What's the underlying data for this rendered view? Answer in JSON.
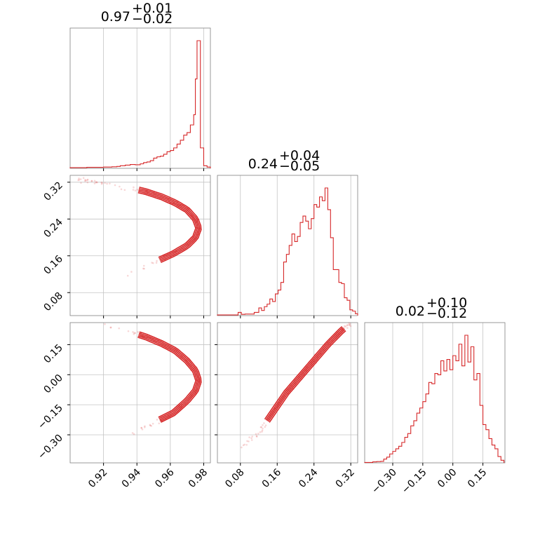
{
  "chart_data": {
    "type": "corner",
    "color": "#d62728",
    "params": [
      {
        "title_median": "0.97",
        "title_plus": "+0.01",
        "title_minus": "−0.02",
        "range": [
          0.9,
          0.984
        ],
        "ticks": [
          0.92,
          0.94,
          0.96,
          0.98
        ],
        "tick_labels": [
          "0.92",
          "0.94",
          "0.96",
          "0.98"
        ],
        "hist_bins": [
          {
            "x": 0.9,
            "h": 0.005
          },
          {
            "x": 0.905,
            "h": 0.005
          },
          {
            "x": 0.91,
            "h": 0.008
          },
          {
            "x": 0.915,
            "h": 0.008
          },
          {
            "x": 0.92,
            "h": 0.01
          },
          {
            "x": 0.925,
            "h": 0.012
          },
          {
            "x": 0.928,
            "h": 0.015
          },
          {
            "x": 0.93,
            "h": 0.02
          },
          {
            "x": 0.933,
            "h": 0.025
          },
          {
            "x": 0.936,
            "h": 0.03
          },
          {
            "x": 0.939,
            "h": 0.028
          },
          {
            "x": 0.942,
            "h": 0.035
          },
          {
            "x": 0.944,
            "h": 0.045
          },
          {
            "x": 0.946,
            "h": 0.05
          },
          {
            "x": 0.948,
            "h": 0.06
          },
          {
            "x": 0.95,
            "h": 0.08
          },
          {
            "x": 0.952,
            "h": 0.09
          },
          {
            "x": 0.954,
            "h": 0.095
          },
          {
            "x": 0.956,
            "h": 0.11
          },
          {
            "x": 0.958,
            "h": 0.13
          },
          {
            "x": 0.96,
            "h": 0.14
          },
          {
            "x": 0.962,
            "h": 0.16
          },
          {
            "x": 0.964,
            "h": 0.19
          },
          {
            "x": 0.966,
            "h": 0.22
          },
          {
            "x": 0.968,
            "h": 0.26
          },
          {
            "x": 0.97,
            "h": 0.28
          },
          {
            "x": 0.972,
            "h": 0.34
          },
          {
            "x": 0.974,
            "h": 0.42
          },
          {
            "x": 0.975,
            "h": 0.7
          },
          {
            "x": 0.976,
            "h": 1.0
          },
          {
            "x": 0.978,
            "h": 0.16
          },
          {
            "x": 0.98,
            "h": 0.02
          },
          {
            "x": 0.982,
            "h": 0.01
          }
        ]
      },
      {
        "title_median": "0.24",
        "title_plus": "+0.04",
        "title_minus": "−0.05",
        "range": [
          0.03,
          0.335
        ],
        "ticks": [
          0.08,
          0.16,
          0.24,
          0.32
        ],
        "tick_labels": [
          "0.08",
          "0.16",
          "0.24",
          "0.32"
        ],
        "hist_bins": [
          {
            "x": 0.03,
            "h": 0.005
          },
          {
            "x": 0.05,
            "h": 0.005
          },
          {
            "x": 0.075,
            "h": 0.025
          },
          {
            "x": 0.082,
            "h": 0.01
          },
          {
            "x": 0.09,
            "h": 0.012
          },
          {
            "x": 0.11,
            "h": 0.025
          },
          {
            "x": 0.12,
            "h": 0.06
          },
          {
            "x": 0.126,
            "h": 0.04
          },
          {
            "x": 0.132,
            "h": 0.07
          },
          {
            "x": 0.138,
            "h": 0.09
          },
          {
            "x": 0.144,
            "h": 0.13
          },
          {
            "x": 0.15,
            "h": 0.11
          },
          {
            "x": 0.156,
            "h": 0.17
          },
          {
            "x": 0.162,
            "h": 0.2
          },
          {
            "x": 0.168,
            "h": 0.26
          },
          {
            "x": 0.174,
            "h": 0.42
          },
          {
            "x": 0.18,
            "h": 0.48
          },
          {
            "x": 0.186,
            "h": 0.55
          },
          {
            "x": 0.192,
            "h": 0.64
          },
          {
            "x": 0.198,
            "h": 0.58
          },
          {
            "x": 0.204,
            "h": 0.62
          },
          {
            "x": 0.21,
            "h": 0.73
          },
          {
            "x": 0.216,
            "h": 0.78
          },
          {
            "x": 0.222,
            "h": 0.74
          },
          {
            "x": 0.228,
            "h": 0.68
          },
          {
            "x": 0.234,
            "h": 0.76
          },
          {
            "x": 0.24,
            "h": 0.87
          },
          {
            "x": 0.246,
            "h": 0.85
          },
          {
            "x": 0.252,
            "h": 0.93
          },
          {
            "x": 0.258,
            "h": 0.9
          },
          {
            "x": 0.264,
            "h": 1.0
          },
          {
            "x": 0.27,
            "h": 0.83
          },
          {
            "x": 0.276,
            "h": 0.61
          },
          {
            "x": 0.282,
            "h": 0.36
          },
          {
            "x": 0.288,
            "h": 0.36
          },
          {
            "x": 0.294,
            "h": 0.26
          },
          {
            "x": 0.3,
            "h": 0.25
          },
          {
            "x": 0.306,
            "h": 0.14
          },
          {
            "x": 0.312,
            "h": 0.12
          },
          {
            "x": 0.318,
            "h": 0.045
          },
          {
            "x": 0.324,
            "h": 0.035
          },
          {
            "x": 0.33,
            "h": 0.015
          }
        ]
      },
      {
        "title_median": "0.02",
        "title_plus": "+0.10",
        "title_minus": "−0.12",
        "range": [
          -0.44,
          0.26
        ],
        "ticks": [
          -0.3,
          -0.15,
          0.0,
          0.15
        ],
        "tick_labels": [
          "−0.30",
          "−0.15",
          "0.00",
          "0.15"
        ],
        "hist_bins": [
          {
            "x": -0.44,
            "h": 0.003
          },
          {
            "x": -0.4,
            "h": 0.008
          },
          {
            "x": -0.38,
            "h": 0.01
          },
          {
            "x": -0.36,
            "h": 0.012
          },
          {
            "x": -0.345,
            "h": 0.03
          },
          {
            "x": -0.33,
            "h": 0.045
          },
          {
            "x": -0.315,
            "h": 0.07
          },
          {
            "x": -0.3,
            "h": 0.09
          },
          {
            "x": -0.285,
            "h": 0.11
          },
          {
            "x": -0.27,
            "h": 0.13
          },
          {
            "x": -0.255,
            "h": 0.16
          },
          {
            "x": -0.24,
            "h": 0.2
          },
          {
            "x": -0.225,
            "h": 0.23
          },
          {
            "x": -0.21,
            "h": 0.29
          },
          {
            "x": -0.195,
            "h": 0.33
          },
          {
            "x": -0.18,
            "h": 0.39
          },
          {
            "x": -0.165,
            "h": 0.43
          },
          {
            "x": -0.15,
            "h": 0.48
          },
          {
            "x": -0.135,
            "h": 0.54
          },
          {
            "x": -0.12,
            "h": 0.63
          },
          {
            "x": -0.105,
            "h": 0.62
          },
          {
            "x": -0.09,
            "h": 0.7
          },
          {
            "x": -0.075,
            "h": 0.69
          },
          {
            "x": -0.06,
            "h": 0.8
          },
          {
            "x": -0.045,
            "h": 0.72
          },
          {
            "x": -0.03,
            "h": 0.81
          },
          {
            "x": -0.015,
            "h": 0.73
          },
          {
            "x": 0.0,
            "h": 0.84
          },
          {
            "x": 0.015,
            "h": 0.8
          },
          {
            "x": 0.03,
            "h": 0.93
          },
          {
            "x": 0.045,
            "h": 0.76
          },
          {
            "x": 0.06,
            "h": 1.0
          },
          {
            "x": 0.075,
            "h": 0.79
          },
          {
            "x": 0.09,
            "h": 0.91
          },
          {
            "x": 0.105,
            "h": 0.65
          },
          {
            "x": 0.12,
            "h": 0.7
          },
          {
            "x": 0.135,
            "h": 0.45
          },
          {
            "x": 0.15,
            "h": 0.3
          },
          {
            "x": 0.165,
            "h": 0.26
          },
          {
            "x": 0.18,
            "h": 0.19
          },
          {
            "x": 0.195,
            "h": 0.14
          },
          {
            "x": 0.21,
            "h": 0.11
          },
          {
            "x": 0.225,
            "h": 0.05
          },
          {
            "x": 0.24,
            "h": 0.02
          }
        ]
      }
    ],
    "pair_ridges": {
      "p1_vs_p0": [
        {
          "x": 0.905,
          "y": 0.325
        },
        {
          "x": 0.92,
          "y": 0.318
        },
        {
          "x": 0.935,
          "y": 0.308
        },
        {
          "x": 0.945,
          "y": 0.3
        },
        {
          "x": 0.955,
          "y": 0.288
        },
        {
          "x": 0.963,
          "y": 0.275
        },
        {
          "x": 0.97,
          "y": 0.26
        },
        {
          "x": 0.975,
          "y": 0.24
        },
        {
          "x": 0.977,
          "y": 0.22
        },
        {
          "x": 0.975,
          "y": 0.2
        },
        {
          "x": 0.97,
          "y": 0.182
        },
        {
          "x": 0.962,
          "y": 0.165
        },
        {
          "x": 0.95,
          "y": 0.145
        },
        {
          "x": 0.935,
          "y": 0.12
        }
      ],
      "p2_vs_p0": [
        {
          "x": 0.905,
          "y": 0.28
        },
        {
          "x": 0.92,
          "y": 0.25
        },
        {
          "x": 0.935,
          "y": 0.215
        },
        {
          "x": 0.945,
          "y": 0.19
        },
        {
          "x": 0.955,
          "y": 0.155
        },
        {
          "x": 0.963,
          "y": 0.12
        },
        {
          "x": 0.97,
          "y": 0.07
        },
        {
          "x": 0.975,
          "y": 0.02
        },
        {
          "x": 0.977,
          "y": -0.03
        },
        {
          "x": 0.975,
          "y": -0.08
        },
        {
          "x": 0.97,
          "y": -0.13
        },
        {
          "x": 0.962,
          "y": -0.19
        },
        {
          "x": 0.95,
          "y": -0.24
        },
        {
          "x": 0.935,
          "y": -0.3
        }
      ],
      "p2_vs_p1": [
        {
          "x": 0.085,
          "y": -0.36
        },
        {
          "x": 0.12,
          "y": -0.29
        },
        {
          "x": 0.15,
          "y": -0.19
        },
        {
          "x": 0.18,
          "y": -0.09
        },
        {
          "x": 0.21,
          "y": -0.01
        },
        {
          "x": 0.24,
          "y": 0.07
        },
        {
          "x": 0.27,
          "y": 0.15
        },
        {
          "x": 0.3,
          "y": 0.22
        },
        {
          "x": 0.325,
          "y": 0.27
        }
      ]
    }
  }
}
